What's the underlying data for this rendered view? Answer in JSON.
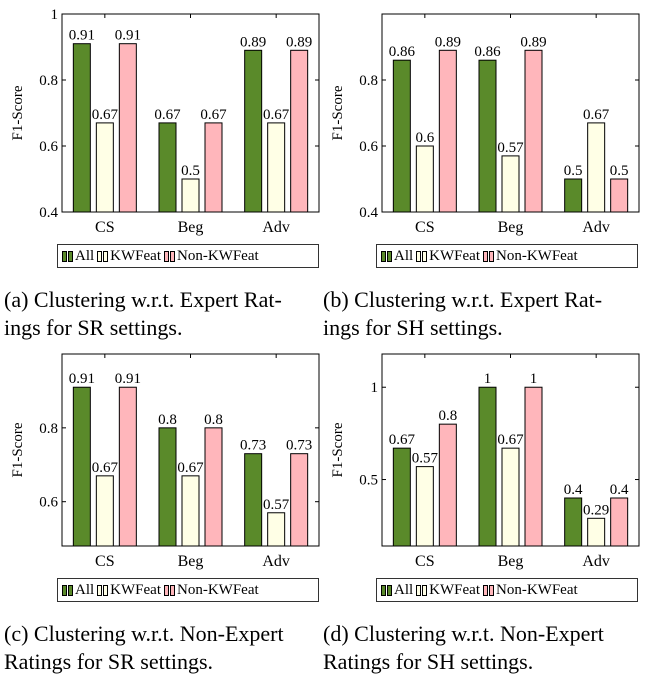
{
  "colors": {
    "all": "#5a8a2a",
    "kwfeat": "#ffffe6",
    "nonkw": "#ffb6bb",
    "axis": "#000000"
  },
  "legend_labels": [
    "All",
    "KWFeat",
    "Non-KWFeat"
  ],
  "captions": [
    "(a) Clustering w.r.t.  Expert Rat-",
    "ings for SR settings.",
    "(b) Clustering w.r.t.  Expert Rat-",
    "ings for SH settings.",
    "(c) Clustering w.r.t.  Non-Expert",
    "Ratings for SR settings.",
    "(d) Clustering w.r.t.  Non-Expert",
    "Ratings for SH settings."
  ],
  "chart_data": [
    {
      "type": "bar",
      "ylabel": "F1-Score",
      "categories": [
        "CS",
        "Beg",
        "Adv"
      ],
      "ylim": [
        0.4,
        1.0
      ],
      "yticks": [
        0.4,
        0.6,
        0.8,
        1.0
      ],
      "ytick_labels": [
        "0.4",
        "0.6",
        "0.8",
        "1"
      ],
      "series": [
        {
          "name": "All",
          "values": [
            0.91,
            0.67,
            0.89
          ],
          "labels": [
            "0.91",
            "0.67",
            "0.89"
          ]
        },
        {
          "name": "KWFeat",
          "values": [
            0.67,
            0.5,
            0.67
          ],
          "labels": [
            "0.67",
            "0.5",
            "0.67"
          ]
        },
        {
          "name": "Non-KWFeat",
          "values": [
            0.91,
            0.67,
            0.89
          ],
          "labels": [
            "0.91",
            "0.67",
            "0.89"
          ]
        }
      ]
    },
    {
      "type": "bar",
      "ylabel": "F1-Score",
      "categories": [
        "CS",
        "Beg",
        "Adv"
      ],
      "ylim": [
        0.4,
        1.0
      ],
      "yticks": [
        0.4,
        0.6,
        0.8
      ],
      "ytick_labels": [
        "0.4",
        "0.6",
        "0.8"
      ],
      "series": [
        {
          "name": "All",
          "values": [
            0.86,
            0.86,
            0.5
          ],
          "labels": [
            "0.86",
            "0.86",
            "0.5"
          ]
        },
        {
          "name": "KWFeat",
          "values": [
            0.6,
            0.57,
            0.67
          ],
          "labels": [
            "0.6",
            "0.57",
            "0.67"
          ]
        },
        {
          "name": "Non-KWFeat",
          "values": [
            0.89,
            0.89,
            0.5
          ],
          "labels": [
            "0.89",
            "0.89",
            "0.5"
          ]
        }
      ]
    },
    {
      "type": "bar",
      "ylabel": "F1-Score",
      "categories": [
        "CS",
        "Beg",
        "Adv"
      ],
      "ylim": [
        0.48,
        1.0
      ],
      "yticks": [
        0.6,
        0.8
      ],
      "ytick_labels": [
        "0.6",
        "0.8"
      ],
      "series": [
        {
          "name": "All",
          "values": [
            0.91,
            0.8,
            0.73
          ],
          "labels": [
            "0.91",
            "0.8",
            "0.73"
          ]
        },
        {
          "name": "KWFeat",
          "values": [
            0.67,
            0.67,
            0.57
          ],
          "labels": [
            "0.67",
            "0.67",
            "0.57"
          ]
        },
        {
          "name": "Non-KWFeat",
          "values": [
            0.91,
            0.8,
            0.73
          ],
          "labels": [
            "0.91",
            "0.8",
            "0.73"
          ]
        }
      ]
    },
    {
      "type": "bar",
      "ylabel": "F1-Score",
      "categories": [
        "CS",
        "Beg",
        "Adv"
      ],
      "ylim": [
        0.14,
        1.18
      ],
      "yticks": [
        0.5,
        1.0
      ],
      "ytick_labels": [
        "0.5",
        "1"
      ],
      "series": [
        {
          "name": "All",
          "values": [
            0.67,
            1.0,
            0.4
          ],
          "labels": [
            "0.67",
            "1",
            "0.4"
          ]
        },
        {
          "name": "KWFeat",
          "values": [
            0.57,
            0.67,
            0.29
          ],
          "labels": [
            "0.57",
            "0.67",
            "0.29"
          ]
        },
        {
          "name": "Non-KWFeat",
          "values": [
            0.8,
            1.0,
            0.4
          ],
          "labels": [
            "0.8",
            "1",
            "0.4"
          ]
        }
      ]
    }
  ]
}
